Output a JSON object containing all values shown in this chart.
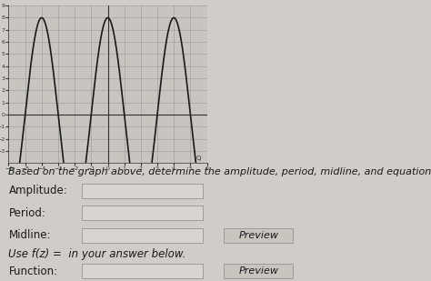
{
  "bg_color": "#d0ccc8",
  "graph": {
    "xlim": [
      -6,
      6
    ],
    "ylim": [
      -4,
      9
    ],
    "xticks": [
      -6,
      -5,
      -4,
      -3,
      -2,
      -1,
      0,
      1,
      2,
      3,
      4,
      5,
      6
    ],
    "yticks": [
      -3,
      -2,
      -1,
      0,
      1,
      2,
      3,
      4,
      5,
      6,
      7,
      8,
      9
    ],
    "amplitude": 8,
    "period": 4,
    "curve_color": "#1a1a1a",
    "grid_color": "#888888",
    "axis_color": "#333333"
  },
  "text": {
    "main_label": "Based on the graph above, determine the amplitude, period, midline, and equation of the function.",
    "amplitude_label": "Amplitude:",
    "period_label": "Period:",
    "midline_label": "Midline:",
    "use_label": "Use f(z) =  in your answer below.",
    "function_label": "Function:",
    "preview_text": "Preview",
    "font_size": 8.5,
    "label_color": "#1a1a1a"
  },
  "input_box_color": "#c8c4c0",
  "input_box_color2": "#d8d4d0",
  "preview_bg": "#c8c4be",
  "preview_text_color": "#1a1a1a"
}
